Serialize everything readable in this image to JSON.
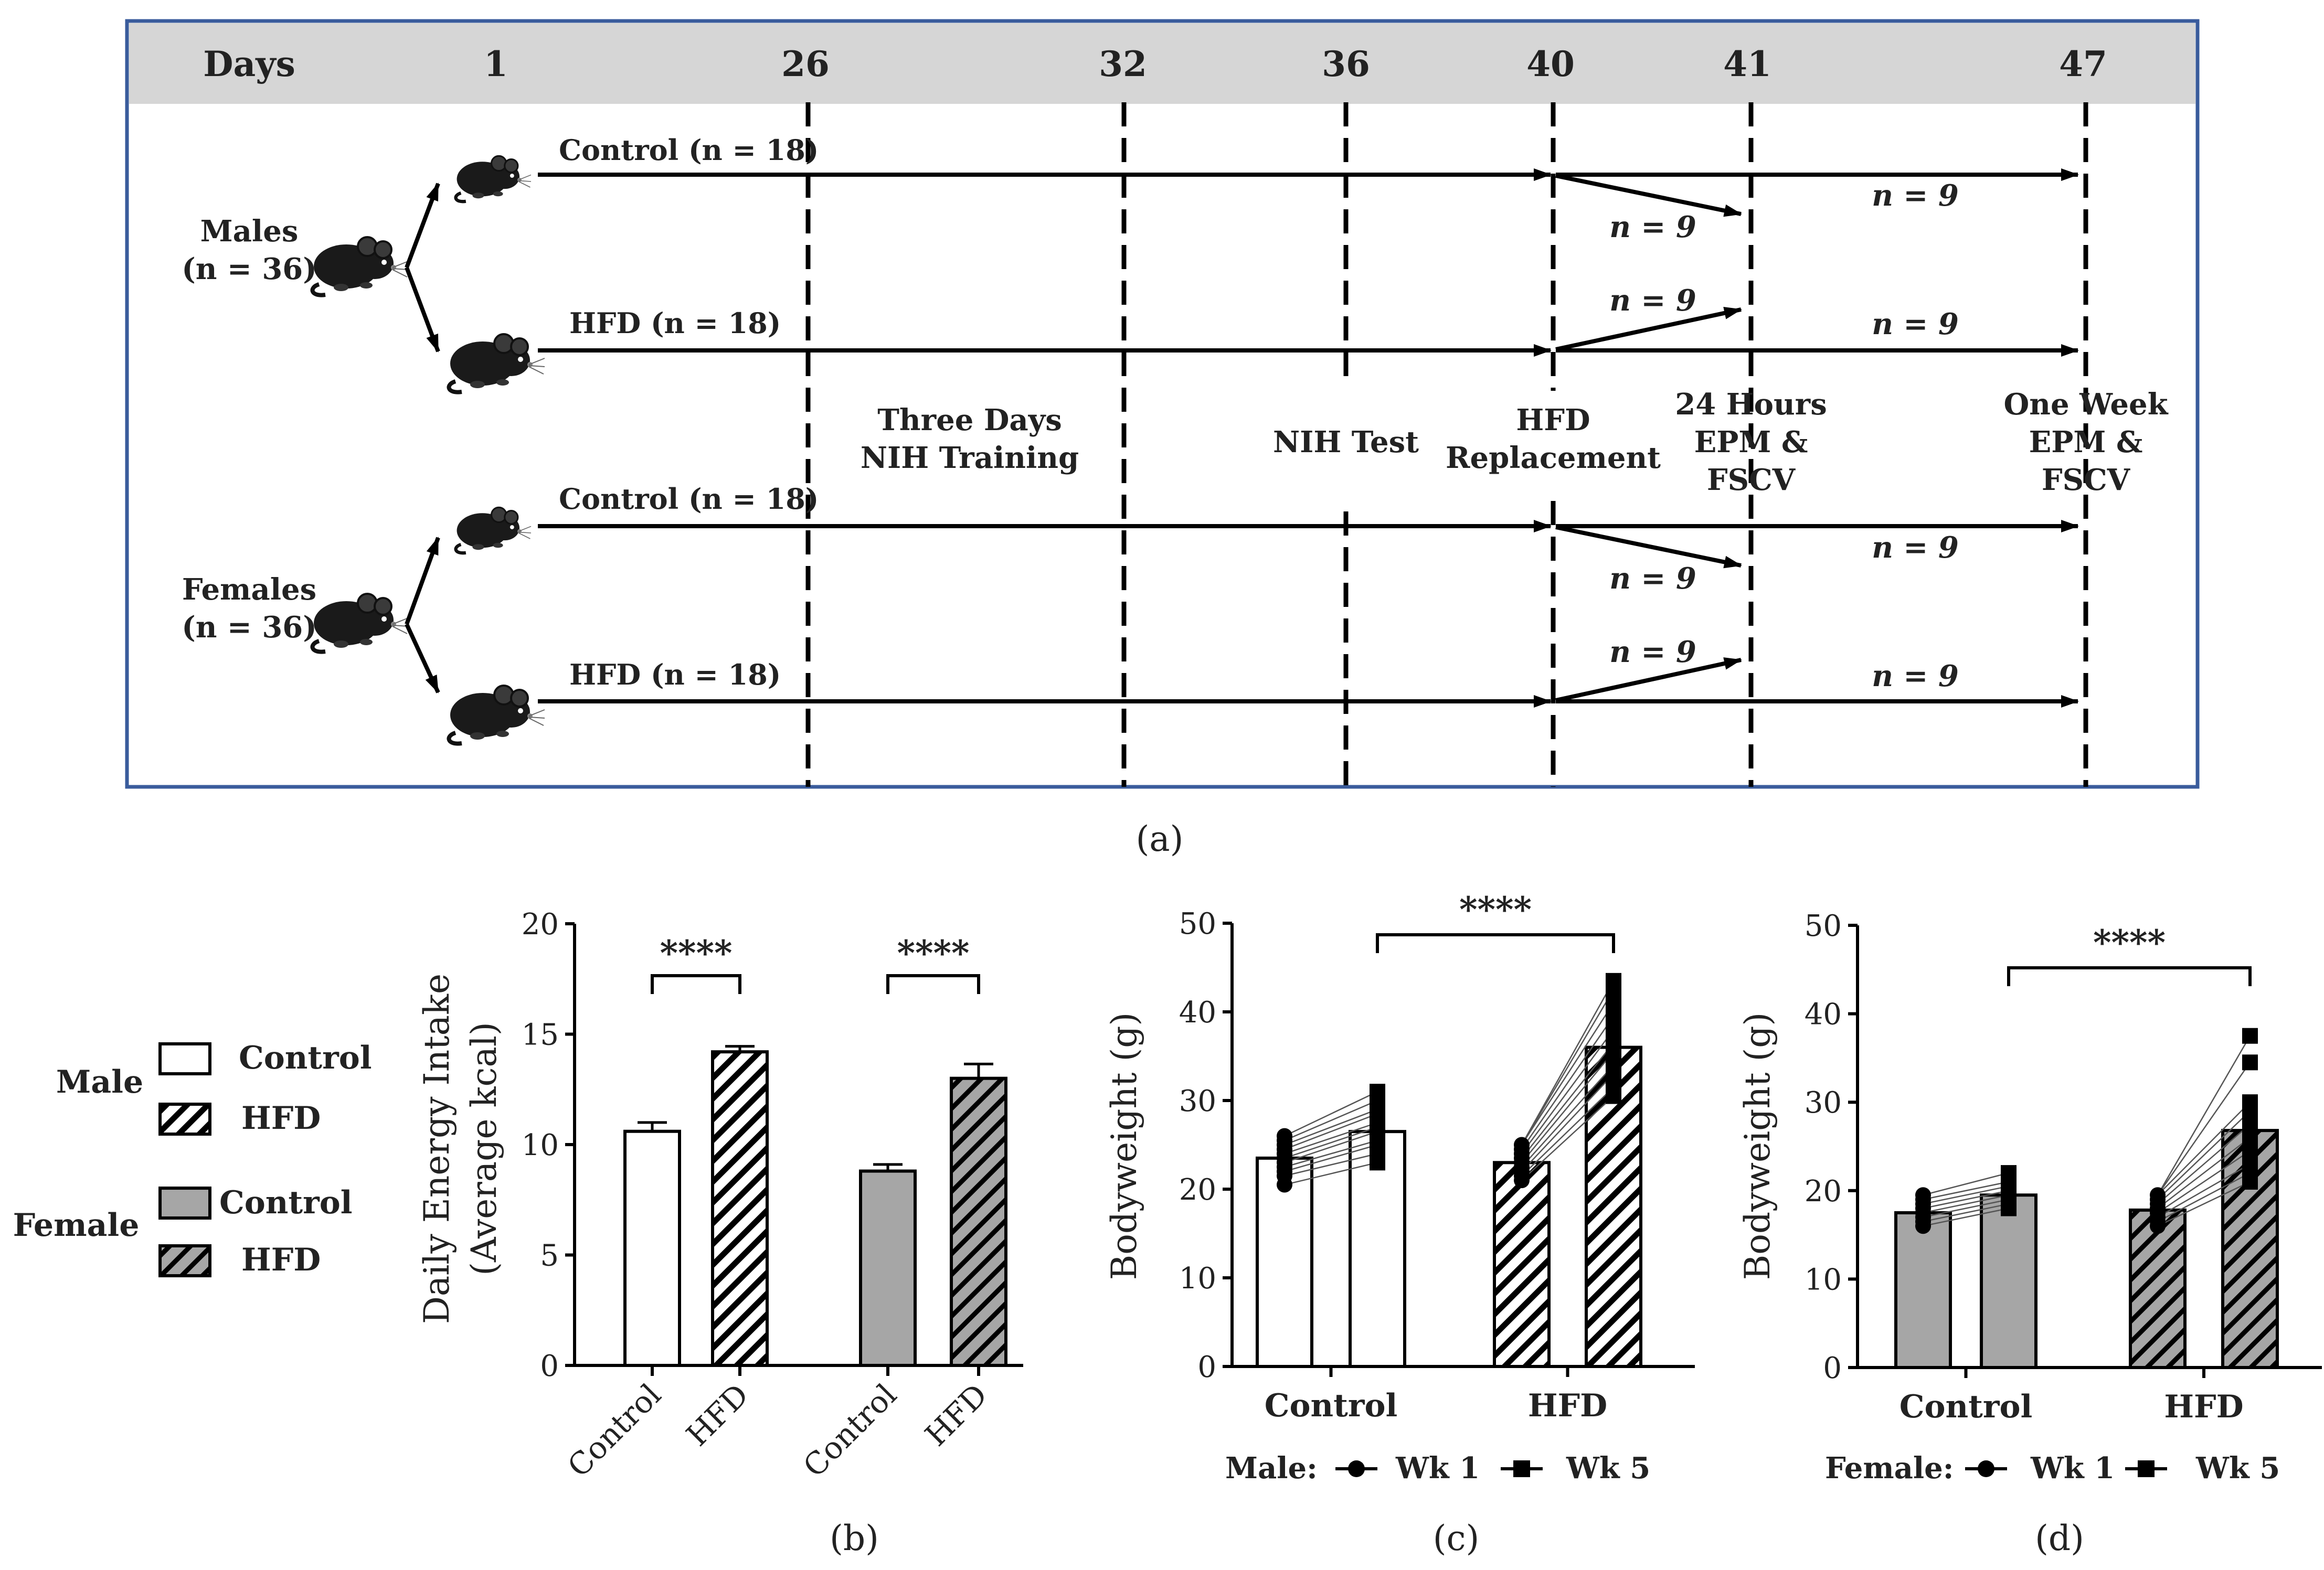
{
  "panel_a": {
    "header_label": "Days",
    "days": [
      "1",
      "26",
      "32",
      "36",
      "40",
      "41",
      "47"
    ],
    "males_label": "Males",
    "males_n": "(n = 36)",
    "females_label": "Females",
    "females_n": "(n = 36)",
    "groups": {
      "male_control": "Control (n = 18)",
      "male_hfd": "HFD (n = 18)",
      "female_control": "Control (n = 18)",
      "female_hfd": "HFD (n = 18)"
    },
    "branch_n": "n = 9",
    "events": {
      "training_l1": "Three Days",
      "training_l2": "NIH Training",
      "nih_test": "NIH Test",
      "replacement_l1": "HFD",
      "replacement_l2": "Replacement",
      "hours_l1": "24 Hours",
      "hours_l2": "EPM &",
      "hours_l3": "FSCV",
      "week_l1": "One Week",
      "week_l2": "EPM &",
      "week_l3": "FSCV"
    },
    "caption": "(a)"
  },
  "legend": {
    "male_label": "Male",
    "female_label": "Female",
    "male_control": "Control",
    "male_hfd": "HFD",
    "female_control": "Control",
    "female_hfd": "HFD"
  },
  "colors": {
    "frame": "#3a5c9c",
    "header_bg": "#d6d6d6",
    "female_fill": "#a6a6a6",
    "line": "#000000",
    "individual_line": "#555555"
  },
  "chart_data": [
    {
      "id": "b",
      "type": "bar",
      "caption": "(b)",
      "ylabel_l1": "Daily Energy Intake",
      "ylabel_l2": "(Average kcal)",
      "ylim": [
        0,
        20
      ],
      "yticks": [
        "0",
        "5",
        "10",
        "15",
        "20"
      ],
      "categories": [
        "Control",
        "HFD",
        "Control",
        "HFD"
      ],
      "values": [
        10.6,
        14.2,
        8.8,
        13.0
      ],
      "errors": [
        0.4,
        0.25,
        0.3,
        0.65
      ],
      "styles": [
        "male-control",
        "male-hfd",
        "female-control",
        "female-hfd"
      ],
      "significance": "****"
    },
    {
      "id": "c",
      "type": "bar",
      "caption": "(c)",
      "ylabel": "Bodyweight (g)",
      "ylim": [
        0,
        50
      ],
      "yticks": [
        "0",
        "10",
        "20",
        "30",
        "40",
        "50"
      ],
      "categories": [
        "Control",
        "HFD"
      ],
      "series": [
        {
          "name": "Wk 1",
          "values": [
            23.5,
            23.0
          ]
        },
        {
          "name": "Wk 5",
          "values": [
            26.5,
            36.0
          ]
        }
      ],
      "points": {
        "control_wk1": [
          20.5,
          21.5,
          22.0,
          22.5,
          23.0,
          23.5,
          24.0,
          24.5,
          25.0,
          25.5,
          26.0
        ],
        "control_wk5": [
          23.0,
          24.0,
          25.0,
          25.5,
          26.5,
          27.0,
          27.5,
          28.5,
          29.0,
          30.0,
          31.0
        ],
        "hfd_wk1": [
          21.0,
          21.5,
          22.0,
          22.5,
          23.0,
          23.5,
          24.0,
          24.5,
          25.0
        ],
        "hfd_wk5": [
          30.5,
          31.5,
          33.0,
          34.0,
          35.5,
          36.5,
          38.0,
          39.5,
          41.0,
          42.5,
          43.5
        ]
      },
      "significance": "****",
      "legend_title": "Male:",
      "legend_wk1": "Wk 1",
      "legend_wk5": "Wk 5"
    },
    {
      "id": "d",
      "type": "bar",
      "caption": "(d)",
      "ylabel": "Bodyweight (g)",
      "ylim": [
        0,
        50
      ],
      "yticks": [
        "0",
        "10",
        "20",
        "30",
        "40",
        "50"
      ],
      "categories": [
        "Control",
        "HFD"
      ],
      "series": [
        {
          "name": "Wk 1",
          "values": [
            17.5,
            17.8
          ]
        },
        {
          "name": "Wk 5",
          "values": [
            19.5,
            26.8
          ]
        }
      ],
      "points": {
        "control_wk1": [
          16.0,
          16.5,
          17.0,
          17.5,
          18.0,
          18.5,
          19.0,
          19.5
        ],
        "control_wk5": [
          18.0,
          18.5,
          19.0,
          19.5,
          20.0,
          20.5,
          21.0,
          22.0
        ],
        "hfd_wk1": [
          16.0,
          16.5,
          17.0,
          17.5,
          18.0,
          18.5,
          19.0,
          19.5
        ],
        "hfd_wk5": [
          21.0,
          22.0,
          23.0,
          24.5,
          26.0,
          27.5,
          29.0,
          30.0,
          34.5,
          37.5
        ]
      },
      "significance": "****",
      "legend_title": "Female:",
      "legend_wk1": "Wk 1",
      "legend_wk5": "Wk 5"
    }
  ]
}
